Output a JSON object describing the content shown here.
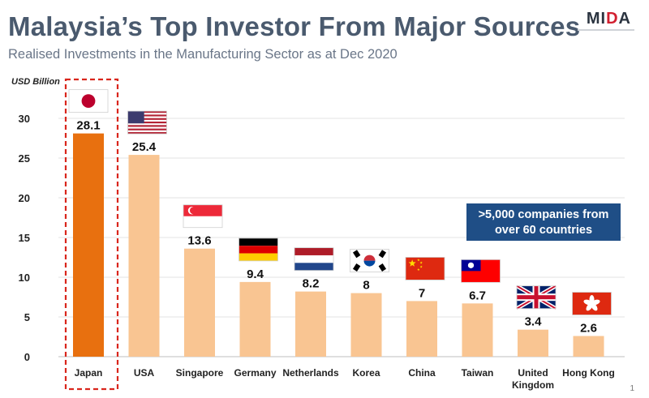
{
  "header": {
    "title": "Malaysia’s Top Investor From Major Sources",
    "subtitle": "Realised Investments in the Manufacturing Sector as at Dec 2020",
    "logo_pre": "MI",
    "logo_accent": "D",
    "logo_post": "A"
  },
  "callout": {
    "line1": ">5,000 companies from",
    "line2": "over 60 countries",
    "bg_color": "#1f4e86"
  },
  "page_number": "1",
  "chart_data": {
    "type": "bar",
    "ylabel": "USD Billion",
    "ylim": [
      0,
      30
    ],
    "yticks": [
      0,
      5,
      10,
      15,
      20,
      25,
      30
    ],
    "grid": true,
    "categories": [
      [
        "Japan"
      ],
      [
        "USA"
      ],
      [
        "Singapore"
      ],
      [
        "Germany"
      ],
      [
        "Netherlands"
      ],
      [
        "Korea"
      ],
      [
        "China"
      ],
      [
        "Taiwan"
      ],
      [
        "United",
        "Kingdom"
      ],
      [
        "Hong Kong"
      ]
    ],
    "values": [
      28.1,
      25.4,
      13.6,
      9.4,
      8.2,
      8,
      7,
      6.7,
      3.4,
      2.6
    ],
    "value_labels": [
      "28.1",
      "25.4",
      "13.6",
      "9.4",
      "8.2",
      "8",
      "7",
      "6.7",
      "3.4",
      "2.6"
    ],
    "flags": [
      "japan",
      "usa",
      "singapore",
      "germany",
      "netherlands",
      "korea",
      "china",
      "taiwan",
      "uk",
      "hongkong"
    ],
    "highlight_index": 0,
    "colors": {
      "highlight": "#e8700f",
      "bar": "#f9c592",
      "highlight_border": "#d9261c"
    }
  }
}
